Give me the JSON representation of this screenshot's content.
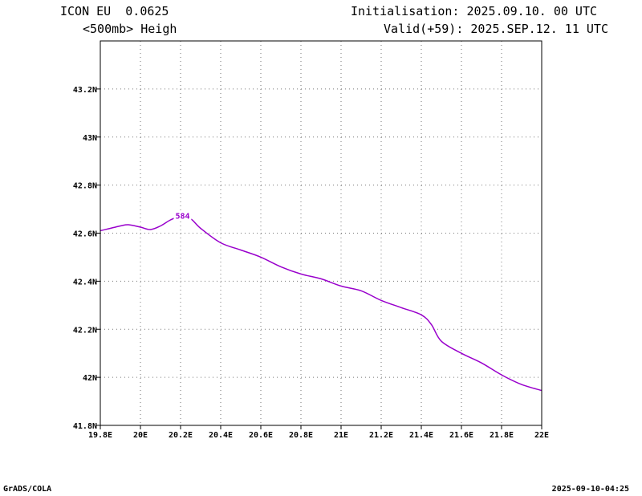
{
  "header": {
    "model": "ICON EU  0.0625",
    "field": "<500mb> Heigh",
    "init": "Initialisation: 2025.09.10. 00 UTC",
    "valid": "Valid(+59): 2025.SEP.12. 11 UTC"
  },
  "footer": {
    "left": "GrADS/COLA",
    "right": "2025-09-10-04:25"
  },
  "chart_data": {
    "type": "line",
    "xlim": [
      19.8,
      22.0
    ],
    "ylim": [
      41.8,
      43.4
    ],
    "grid": true,
    "x_ticks": [
      19.8,
      20.0,
      20.2,
      20.4,
      20.6,
      20.8,
      21.0,
      21.2,
      21.4,
      21.6,
      21.8,
      22.0
    ],
    "x_tick_labels": [
      "19.8E",
      "20E",
      "20.2E",
      "20.4E",
      "20.6E",
      "20.8E",
      "21E",
      "21.2E",
      "21.4E",
      "21.6E",
      "21.8E",
      "22E"
    ],
    "y_ticks": [
      41.8,
      42.0,
      42.2,
      42.4,
      42.6,
      42.8,
      43.0,
      43.2
    ],
    "y_tick_labels": [
      "41.8N",
      "42N",
      "42.2N",
      "42.4N",
      "42.6N",
      "42.8N",
      "43N",
      "43.2N"
    ],
    "line_color": "#9900cc",
    "series": [
      {
        "label": "584",
        "label_at": [
          20.21,
          42.67
        ],
        "x": [
          19.8,
          19.9,
          19.94,
          20.0,
          20.05,
          20.1,
          20.15,
          20.2,
          20.25,
          20.3,
          20.4,
          20.5,
          20.6,
          20.7,
          20.8,
          20.9,
          21.0,
          21.1,
          21.2,
          21.3,
          21.4,
          21.45,
          21.5,
          21.6,
          21.7,
          21.8,
          21.9,
          22.0
        ],
        "y": [
          42.61,
          42.63,
          42.635,
          42.625,
          42.615,
          42.63,
          42.655,
          42.67,
          42.66,
          42.62,
          42.56,
          42.53,
          42.5,
          42.46,
          42.43,
          42.41,
          42.38,
          42.36,
          42.32,
          42.29,
          42.26,
          42.22,
          42.15,
          42.1,
          42.06,
          42.01,
          41.97,
          41.945
        ]
      }
    ]
  }
}
